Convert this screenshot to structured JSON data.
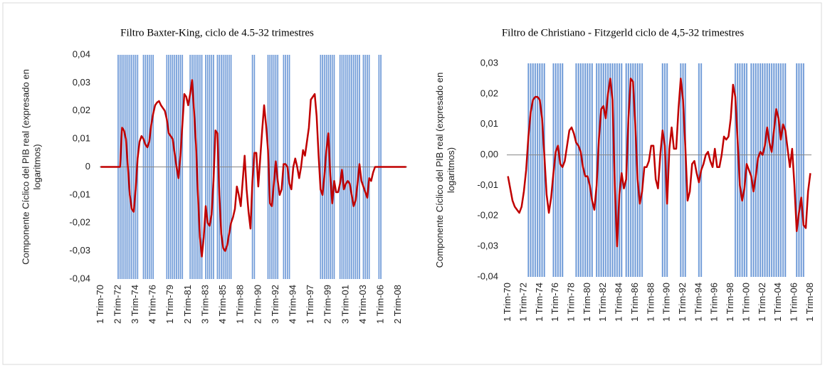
{
  "chart_data": [
    {
      "type": "line",
      "title": "Filtro Baxter-King, ciclo de 4.5-32 trimestres",
      "ylabel": "Componente Cíclico del PIB real (expresado en logaritmos)",
      "categories": [
        "1 Trim-70",
        null,
        null,
        null,
        null,
        null,
        null,
        null,
        null,
        "2 Trim-72",
        null,
        null,
        null,
        null,
        null,
        null,
        null,
        null,
        "3 Trim-74",
        null,
        null,
        null,
        null,
        null,
        null,
        null,
        null,
        "4 Trim-76",
        null,
        null,
        null,
        null,
        null,
        null,
        null,
        null,
        "1 Trim-79",
        null,
        null,
        null,
        null,
        null,
        null,
        null,
        null,
        "2 Trim-81",
        null,
        null,
        null,
        null,
        null,
        null,
        null,
        null,
        "3 Trim-83",
        null,
        null,
        null,
        null,
        null,
        null,
        null,
        null,
        "4 Trim-85",
        null,
        null,
        null,
        null,
        null,
        null,
        null,
        null,
        "1 Trim-88",
        null,
        null,
        null,
        null,
        null,
        null,
        null,
        null,
        "2 Trim-90",
        null,
        null,
        null,
        null,
        null,
        null,
        null,
        null,
        "3 Trim-92",
        null,
        null,
        null,
        null,
        null,
        null,
        null,
        null,
        "4 Trim-94",
        null,
        null,
        null,
        null,
        null,
        null,
        null,
        null,
        "1 Trim-97",
        null,
        null,
        null,
        null,
        null,
        null,
        null,
        null,
        "2 Trim-99",
        null,
        null,
        null,
        null,
        null,
        null,
        null,
        null,
        "3 Trim-01",
        null,
        null,
        null,
        null,
        null,
        null,
        null,
        null,
        "4 Trim-03",
        null,
        null,
        null,
        null,
        null,
        null,
        null,
        null,
        "1 Trim-06",
        null,
        null,
        null,
        null,
        null,
        null,
        null,
        null,
        "2 Trim-08",
        null,
        null,
        null,
        null
      ],
      "values": [
        0,
        0,
        0,
        0,
        0,
        0,
        0,
        0,
        0,
        0,
        0,
        0.014,
        0.013,
        0.01,
        0,
        -0.01,
        -0.015,
        -0.016,
        -0.008,
        0.003,
        0.009,
        0.011,
        0.01,
        0.008,
        0.007,
        0.009,
        0.015,
        0.019,
        0.022,
        0.023,
        0.0235,
        0.022,
        0.021,
        0.02,
        0.017,
        0.012,
        0.011,
        0.01,
        0.005,
        0,
        -0.004,
        0.004,
        0.015,
        0.026,
        0.025,
        0.022,
        0.026,
        0.031,
        0.02,
        0.008,
        -0.01,
        -0.025,
        -0.032,
        -0.025,
        -0.014,
        -0.02,
        -0.021,
        -0.017,
        -0.005,
        0.013,
        0.012,
        -0.01,
        -0.024,
        -0.029,
        -0.03,
        -0.028,
        -0.024,
        -0.02,
        -0.018,
        -0.015,
        -0.007,
        -0.01,
        -0.014,
        -0.005,
        0.004,
        -0.008,
        -0.016,
        -0.022,
        -0.005,
        0.005,
        0.005,
        -0.007,
        0.003,
        0.013,
        0.022,
        0.015,
        0.006,
        -0.013,
        -0.014,
        -0.006,
        0.002,
        -0.005,
        -0.01,
        -0.008,
        0.001,
        0.001,
        0,
        -0.006,
        -0.008,
        0,
        0.003,
        0,
        -0.004,
        0,
        0.006,
        0.004,
        0.009,
        0.014,
        0.024,
        0.025,
        0.026,
        0.018,
        0.004,
        -0.008,
        -0.01,
        -0.003,
        0.006,
        0.012,
        -0.003,
        -0.013,
        -0.005,
        -0.009,
        -0.009,
        -0.006,
        -0.001,
        -0.008,
        -0.006,
        -0.005,
        -0.006,
        -0.01,
        -0.014,
        -0.012,
        -0.006,
        0.001,
        -0.005,
        -0.007,
        -0.009,
        -0.011,
        -0.004,
        -0.005,
        -0.002,
        0,
        0,
        0,
        0,
        0,
        0,
        0,
        0,
        0,
        0,
        0,
        0,
        0,
        0,
        0,
        0,
        0
      ],
      "color": "#c00000",
      "shaded": [
        [
          9,
          19
        ],
        [
          22,
          27
        ],
        [
          34,
          42
        ],
        [
          46,
          52
        ],
        [
          54,
          58
        ],
        [
          60,
          67
        ],
        [
          78,
          79
        ],
        [
          86,
          91
        ],
        [
          94,
          97
        ],
        [
          113,
          120
        ],
        [
          123,
          128
        ],
        [
          129,
          133
        ],
        [
          135,
          138
        ],
        [
          143,
          144
        ]
      ],
      "shade_color": "#6a97d6",
      "ylim": [
        -0.04,
        0.04
      ],
      "yticks": [
        {
          "value": -0.04,
          "label": "-0,04"
        },
        {
          "value": -0.03,
          "label": "-0,03"
        },
        {
          "value": -0.02,
          "label": "-0,02"
        },
        {
          "value": -0.01,
          "label": "-0,01"
        },
        0,
        {
          "value": 0.01,
          "label": "0,01"
        },
        {
          "value": 0.02,
          "label": "0,02"
        },
        {
          "value": 0.03,
          "label": "0,03"
        },
        {
          "value": 0.04,
          "label": "0,04"
        }
      ]
    },
    {
      "type": "line",
      "title": "Filtro de Christiano - Fitzgerld ciclo de 4,5-32 trimestres",
      "ylabel": "Componente Cíclico del PIB real (expresado en logaritmos)",
      "categories": [
        "1 Trim-70",
        null,
        null,
        null,
        null,
        null,
        null,
        "1 Trim-72",
        null,
        null,
        null,
        null,
        null,
        null,
        "1 Trim-74",
        null,
        null,
        null,
        null,
        null,
        null,
        "1 Trim-76",
        null,
        null,
        null,
        null,
        null,
        null,
        "1 Trim-78",
        null,
        null,
        null,
        null,
        null,
        null,
        "1 Trim-80",
        null,
        null,
        null,
        null,
        null,
        null,
        "1 Trim-82",
        null,
        null,
        null,
        null,
        null,
        null,
        "1 Trim-84",
        null,
        null,
        null,
        null,
        null,
        null,
        "1 Trim-86",
        null,
        null,
        null,
        null,
        null,
        null,
        "1 Trim-88",
        null,
        null,
        null,
        null,
        null,
        null,
        "1 Trim-90",
        null,
        null,
        null,
        null,
        null,
        null,
        "1 Trim-92",
        null,
        null,
        null,
        null,
        null,
        null,
        "1 Trim-94",
        null,
        null,
        null,
        null,
        null,
        null,
        "1 Trim-96",
        null,
        null,
        null,
        null,
        null,
        null,
        "1 Trim-98",
        null,
        null,
        null,
        null,
        null,
        null,
        "1 Trim-00",
        null,
        null,
        null,
        null,
        null,
        null,
        "1 Trim-02",
        null,
        null,
        null,
        null,
        null,
        null,
        "1 Trim-04",
        null,
        null,
        null,
        null,
        null,
        null,
        "1 Trim-06",
        null,
        null,
        null,
        null,
        null,
        null,
        "1 Trim-08"
      ],
      "values": [
        -0.007,
        -0.011,
        -0.015,
        -0.017,
        -0.018,
        -0.019,
        -0.017,
        -0.012,
        -0.005,
        0.006,
        0.014,
        0.018,
        0.019,
        0.019,
        0.018,
        0.012,
        0,
        -0.013,
        -0.019,
        -0.014,
        -0.006,
        0.001,
        0.003,
        -0.003,
        -0.004,
        -0.002,
        0.003,
        0.008,
        0.009,
        0.007,
        0.004,
        0.003,
        0.001,
        -0.004,
        -0.007,
        -0.007,
        -0.01,
        -0.015,
        -0.018,
        -0.01,
        0.005,
        0.015,
        0.016,
        0.012,
        0.02,
        0.025,
        0.018,
        -0.01,
        -0.03,
        -0.013,
        -0.006,
        -0.011,
        -0.008,
        0.012,
        0.025,
        0.024,
        0.01,
        -0.008,
        -0.016,
        -0.012,
        -0.004,
        -0.004,
        -0.002,
        0.003,
        0.003,
        -0.008,
        -0.011,
        0,
        0.008,
        0.003,
        -0.016,
        0.002,
        0.009,
        0.002,
        0.002,
        0.015,
        0.025,
        0.018,
        0.003,
        -0.015,
        -0.012,
        -0.003,
        -0.002,
        -0.006,
        -0.009,
        -0.005,
        -0.003,
        0,
        0.001,
        -0.002,
        -0.004,
        0.002,
        -0.004,
        -0.004,
        0,
        0.006,
        0.005,
        0.006,
        0.012,
        0.023,
        0.019,
        0.005,
        -0.01,
        -0.015,
        -0.011,
        -0.003,
        -0.005,
        -0.007,
        -0.012,
        -0.007,
        -0.001,
        0.001,
        0,
        0.003,
        0.009,
        0.004,
        0.001,
        0.008,
        0.015,
        0.012,
        0.005,
        0.01,
        0.008,
        0.002,
        -0.004,
        0.002,
        -0.01,
        -0.025,
        -0.019,
        -0.014,
        -0.023,
        -0.024,
        -0.012,
        -0.006
      ],
      "color": "#c00000",
      "shaded": [
        [
          9,
          16
        ],
        [
          20,
          24
        ],
        [
          30,
          37
        ],
        [
          39,
          43
        ],
        [
          44,
          50
        ],
        [
          52,
          59
        ],
        [
          68,
          70
        ],
        [
          76,
          78
        ],
        [
          84,
          85
        ],
        [
          100,
          105
        ],
        [
          107,
          110
        ],
        [
          111,
          115
        ],
        [
          116,
          118
        ],
        [
          119,
          122
        ],
        [
          127,
          130
        ]
      ],
      "shade_color": "#6a97d6",
      "ylim": [
        -0.04,
        0.03
      ],
      "yticks": [
        {
          "value": -0.04,
          "label": "-0,04"
        },
        {
          "value": -0.03,
          "label": "-0,03"
        },
        {
          "value": -0.02,
          "label": "-0,02"
        },
        {
          "value": -0.01,
          "label": "-0,01"
        },
        {
          "value": 0,
          "label": "0,00"
        },
        {
          "value": 0.01,
          "label": "0,01"
        },
        {
          "value": 0.02,
          "label": "0,02"
        },
        {
          "value": 0.03,
          "label": "0,03"
        }
      ]
    }
  ]
}
